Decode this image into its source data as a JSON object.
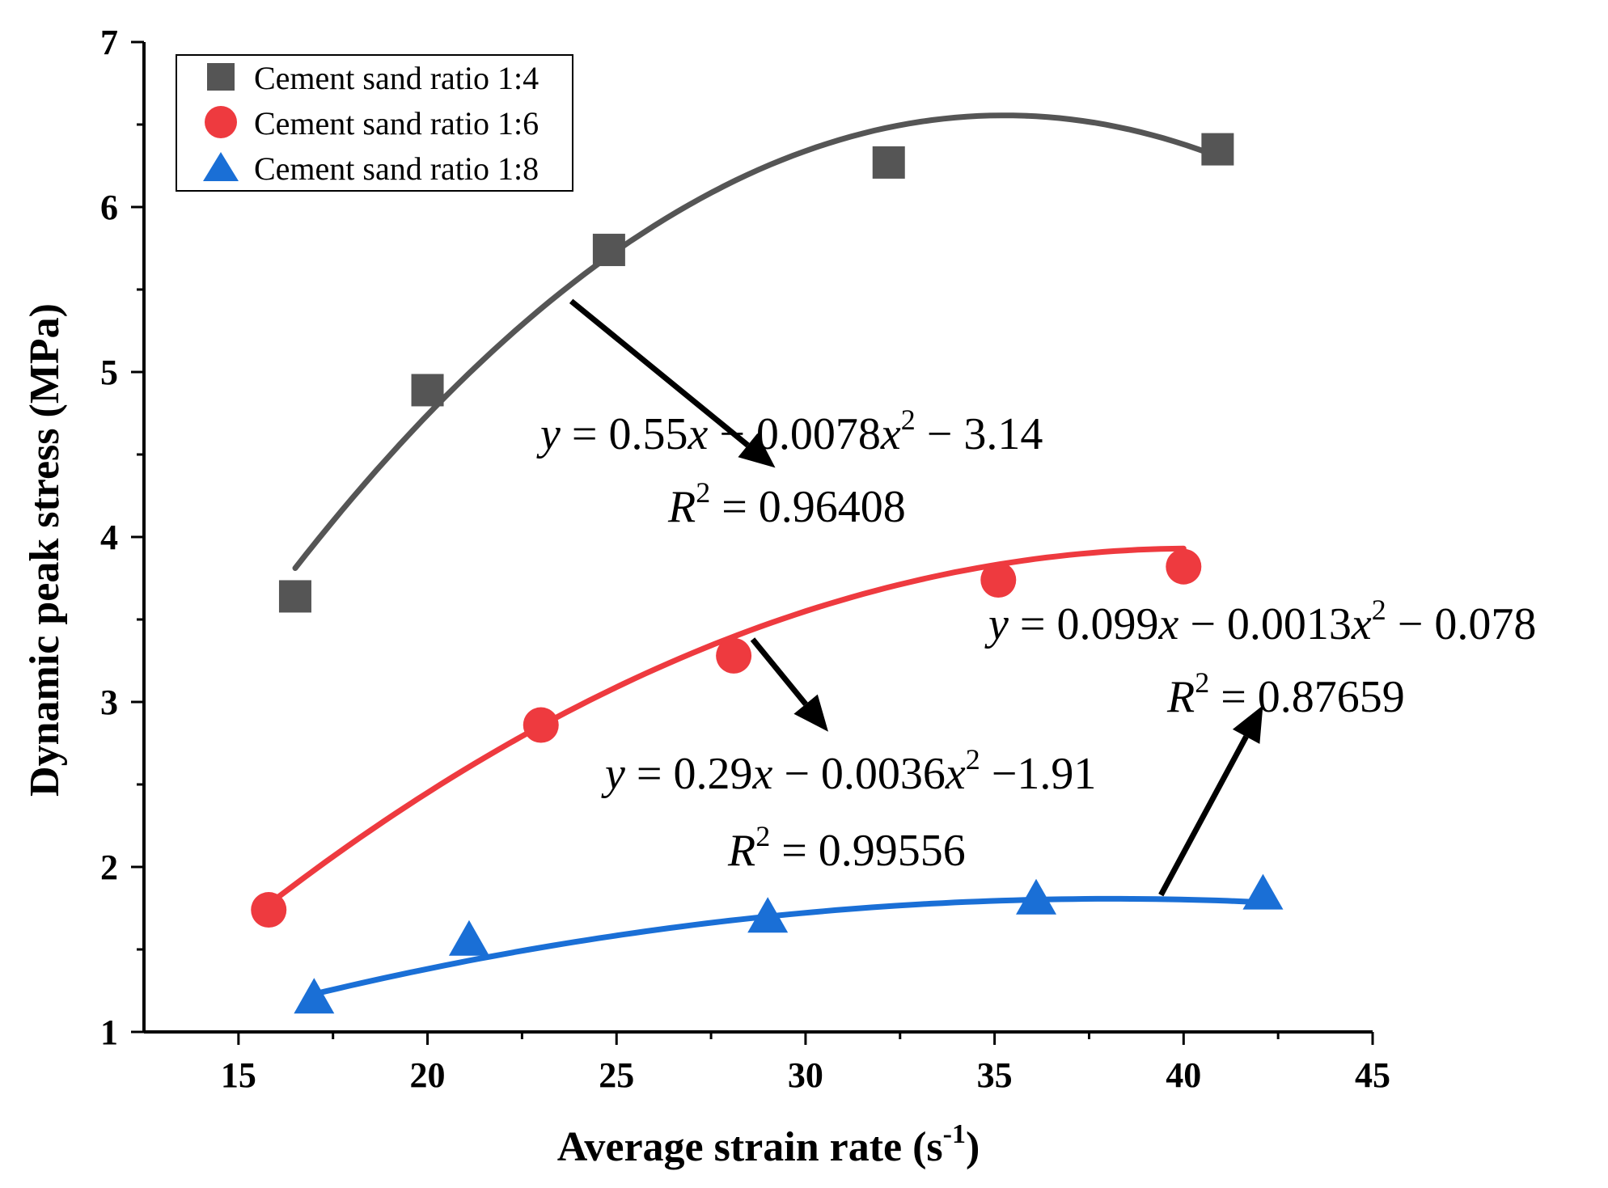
{
  "chart_data": {
    "type": "scatter",
    "xlabel": "Average strain rate (s",
    "xlabel_sup": "-1",
    "xlabel_close": ")",
    "ylabel": "Dynamic peak stress (MPa)",
    "xlim": [
      12.5,
      45
    ],
    "ylim": [
      1,
      7
    ],
    "xticks": [
      15,
      20,
      25,
      30,
      35,
      40,
      45
    ],
    "yticks": [
      1,
      2,
      3,
      4,
      5,
      6,
      7
    ],
    "legend_position": "top-left",
    "series": [
      {
        "name": "Cement sand ratio 1:4",
        "marker": "square",
        "color": "#555555",
        "x": [
          16.5,
          20.0,
          24.8,
          32.2,
          40.9
        ],
        "y": [
          3.64,
          4.89,
          5.74,
          6.27,
          6.35
        ],
        "fit": {
          "a": 0.55,
          "b": 0.0078,
          "c": -3.14,
          "x_range": [
            16.5,
            41.0
          ]
        },
        "equation": {
          "y": "y",
          "eq1": " = 0.55",
          "x1": "x",
          "eq2": " − 0.0078",
          "x2": "x",
          "sup": "2",
          "eq3": " − 3.14"
        },
        "r2": {
          "r": "R",
          "sup": "2",
          "value": " = 0.96408"
        }
      },
      {
        "name": "Cement sand ratio 1:6",
        "marker": "circle",
        "color": "#ee3a3f",
        "x": [
          15.8,
          23.0,
          28.1,
          35.1,
          40.0
        ],
        "y": [
          1.74,
          2.86,
          3.28,
          3.74,
          3.82
        ],
        "fit": {
          "a": 0.29,
          "b": 0.0036,
          "c": -1.91,
          "x_range": [
            15.8,
            40.0
          ]
        },
        "equation": {
          "y": "y",
          "eq1": " = 0.29",
          "x1": "x",
          "eq2": " − 0.0036",
          "x2": "x",
          "sup": "2",
          "eq3": " −1.91"
        },
        "r2": {
          "r": "R",
          "sup": "2",
          "value": " = 0.99556"
        }
      },
      {
        "name": "Cement sand ratio 1:8",
        "marker": "triangle",
        "color": "#1a6fd6",
        "x": [
          17.0,
          21.1,
          29.0,
          36.1,
          42.1
        ],
        "y": [
          1.2,
          1.55,
          1.69,
          1.8,
          1.83
        ],
        "fit": {
          "a": 0.099,
          "b": 0.0013,
          "c": -0.078,
          "x_range": [
            17.0,
            42.1
          ]
        },
        "equation": {
          "y": "y",
          "eq1": " = 0.099",
          "x1": "x",
          "eq2": " − 0.0013",
          "x2": "x",
          "sup": "2",
          "eq3": " − 0.078"
        },
        "r2": {
          "r": "R",
          "sup": "2",
          "value": " = 0.87659"
        }
      }
    ]
  }
}
